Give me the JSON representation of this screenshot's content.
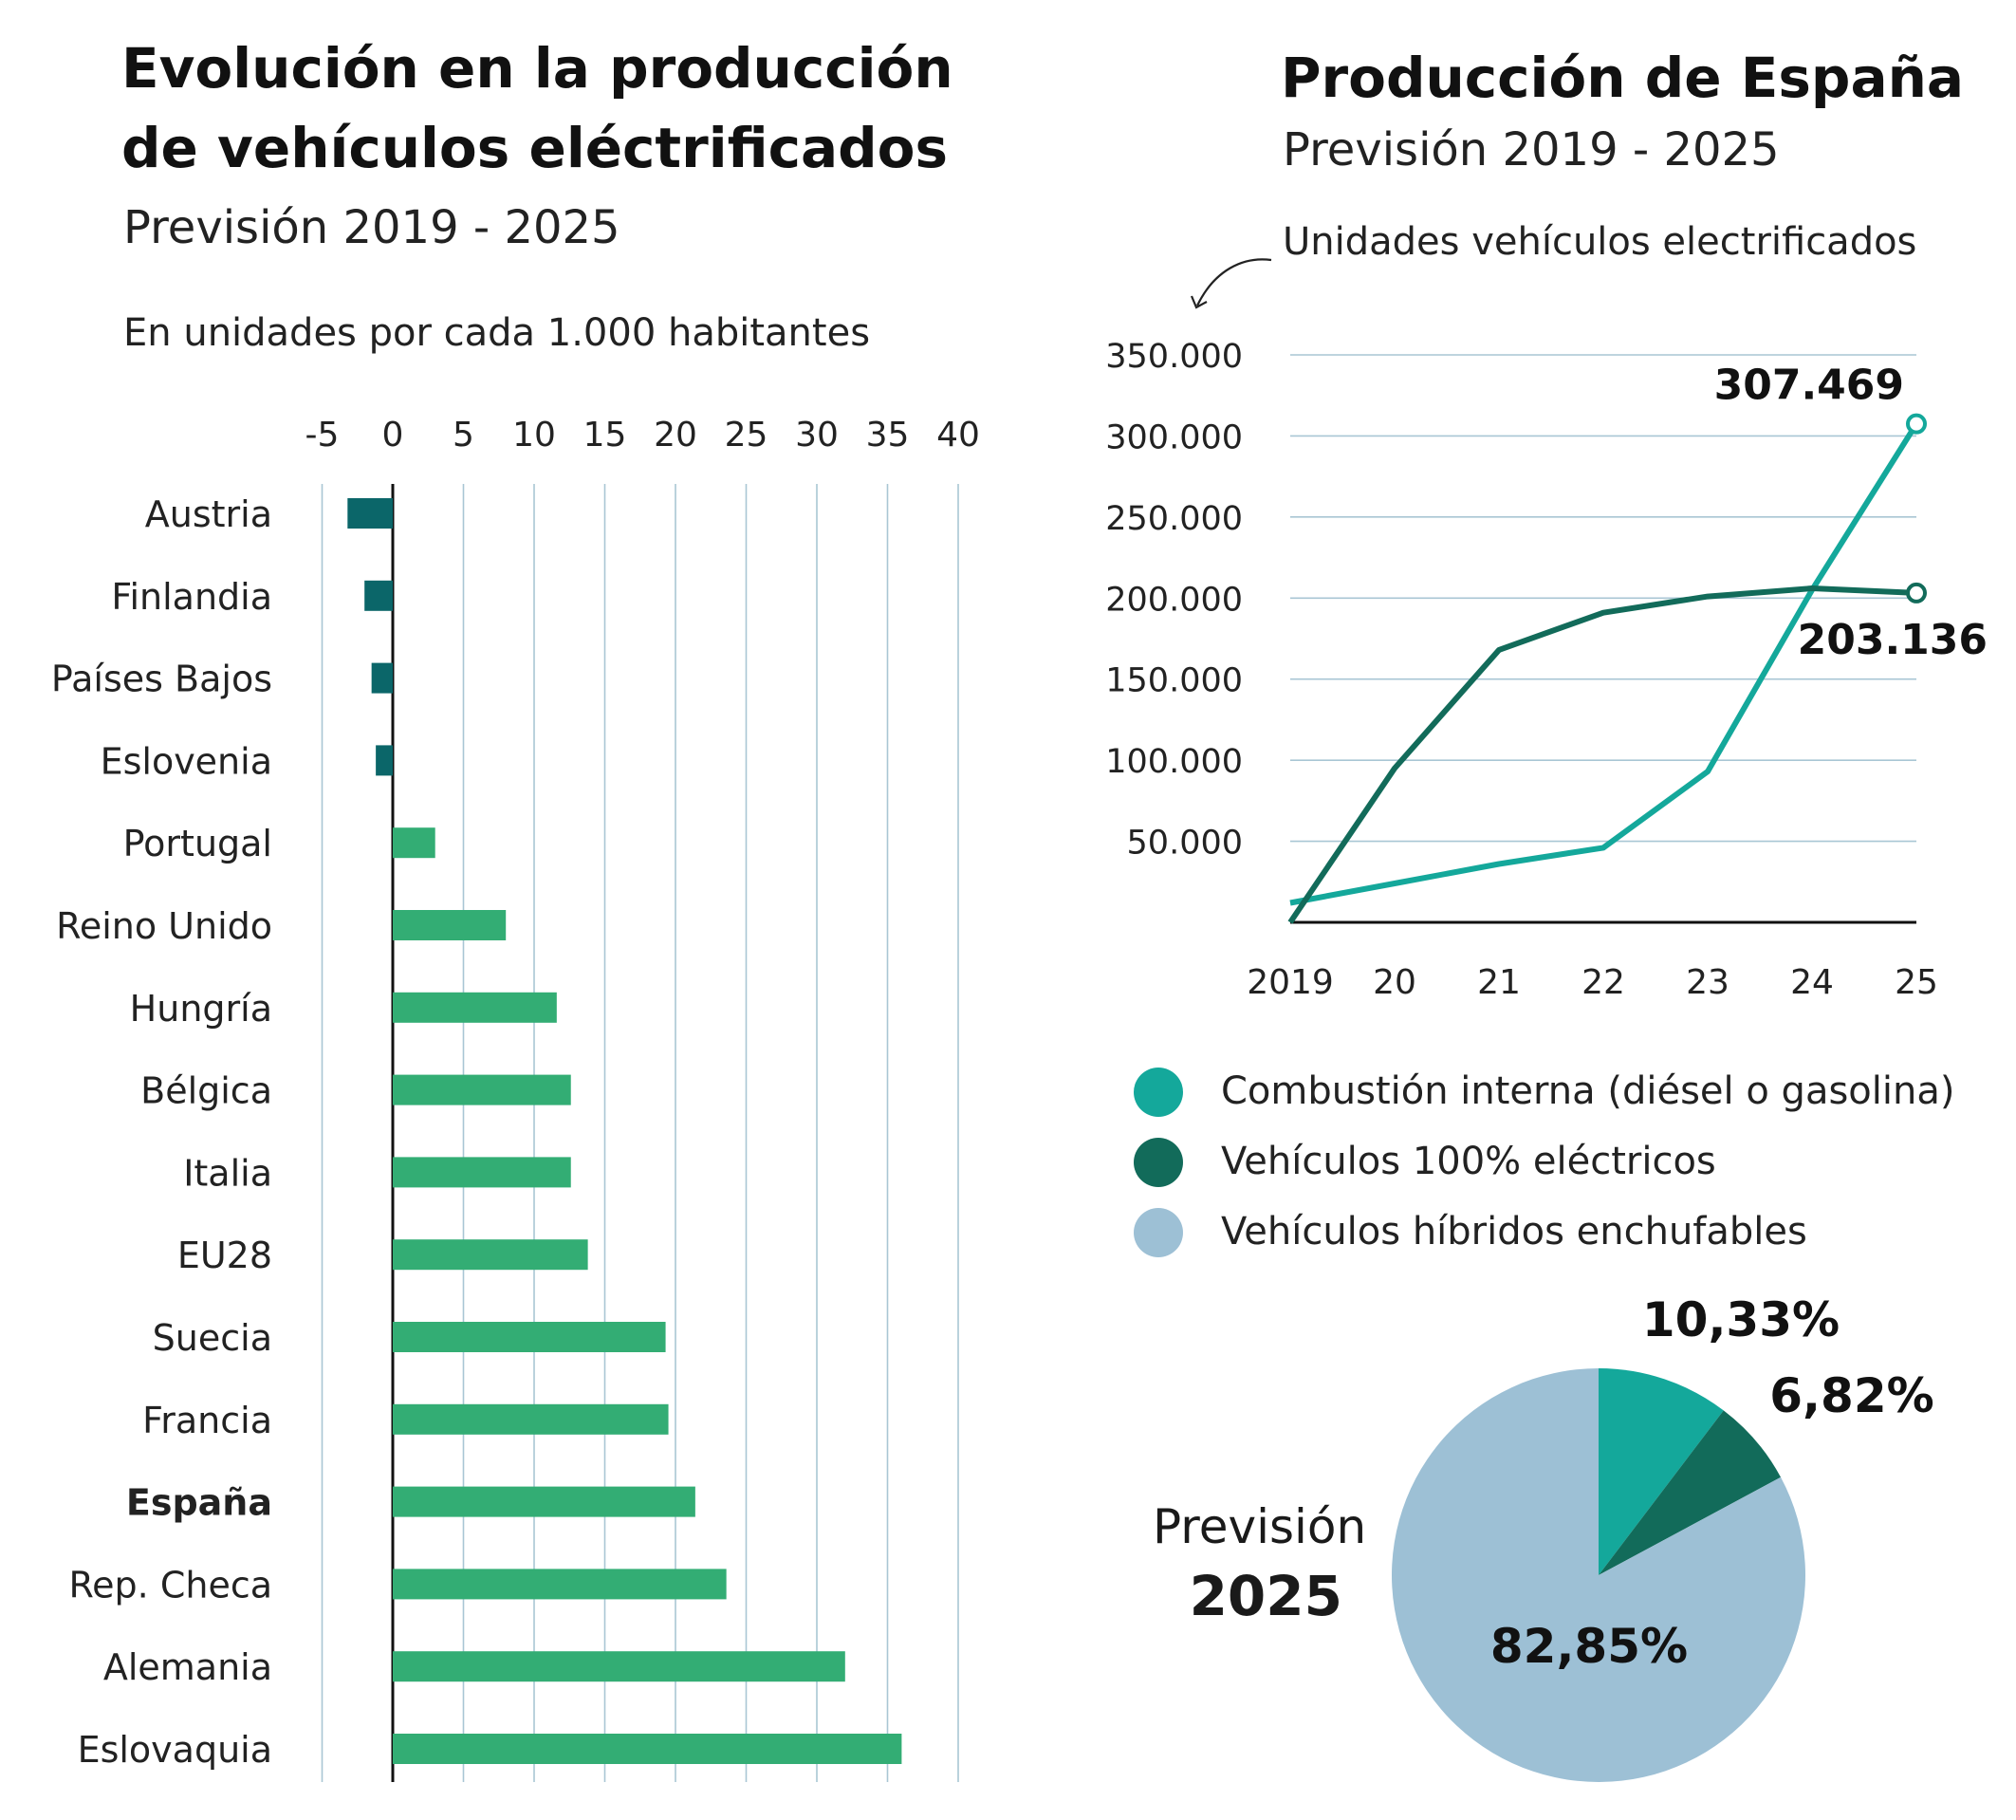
{
  "left": {
    "title_line1": "Evolución en la producción",
    "title_line2": "de vehículos eléctrificados",
    "subtitle": "Previsión 2019 - 2025",
    "unit_note": "En unidades por cada 1.000 habitantes"
  },
  "right": {
    "title": "Producción de España",
    "subtitle": "Previsión 2019 - 2025",
    "line_note": "Unidades vehículos electrificados"
  },
  "colors": {
    "positive_bar": "#33ad74",
    "negative_bar": "#0b6669",
    "grid": "#a9c6d4",
    "combustion": "#14a89b",
    "electric": "#126b5a",
    "hybrid": "#9dc0d5"
  },
  "chart_data": [
    {
      "type": "bar",
      "orientation": "horizontal",
      "categories": [
        "Austria",
        "Finlandia",
        "Países Bajos",
        "Eslovenia",
        "Portugal",
        "Reino Unido",
        "Hungría",
        "Bélgica",
        "Italia",
        "EU28",
        "Suecia",
        "Francia",
        "España",
        "Rep. Checa",
        "Alemania",
        "Eslovaquia"
      ],
      "values": [
        -3.2,
        -2,
        -1.5,
        -1.2,
        3,
        8,
        11.6,
        12.6,
        12.6,
        13.8,
        19.3,
        19.5,
        21.4,
        23.6,
        32,
        36
      ],
      "highlight": "España",
      "xlim": [
        -5,
        40
      ],
      "xticks": [
        -5,
        0,
        5,
        10,
        15,
        20,
        25,
        30,
        35,
        40
      ],
      "xlabel": "En unidades por cada 1.000 habitantes",
      "grid": true
    },
    {
      "type": "line",
      "x": [
        "2019",
        "20",
        "21",
        "22",
        "23",
        "24",
        "25"
      ],
      "series": [
        {
          "name": "Combustión interna (diésel o gasolina)",
          "values": [
            12000,
            24000,
            36000,
            46000,
            93000,
            205000,
            307469
          ]
        },
        {
          "name": "Vehículos 100% eléctricos",
          "values": [
            0,
            95000,
            168000,
            191000,
            201000,
            206000,
            203136
          ]
        }
      ],
      "ylim": [
        0,
        350000
      ],
      "yticks": [
        50000,
        100000,
        150000,
        200000,
        250000,
        300000,
        350000
      ],
      "ytick_labels": [
        "50.000",
        "100.000",
        "150.000",
        "200.000",
        "250.000",
        "300.000",
        "350.000"
      ],
      "end_labels": [
        "307.469",
        "203.136"
      ],
      "ylabel": "Unidades vehículos electrificados",
      "grid": true
    },
    {
      "type": "pie",
      "labels": [
        "Combustión interna (diésel o gasolina)",
        "Vehículos 100% eléctricos",
        "Vehículos híbridos enchufables"
      ],
      "values": [
        10.33,
        6.82,
        82.85
      ],
      "value_labels": [
        "10,33%",
        "6,82%",
        "82,85%"
      ],
      "caption_line1": "Previsión",
      "caption_line2": "2025",
      "legend_placement": "above"
    }
  ]
}
